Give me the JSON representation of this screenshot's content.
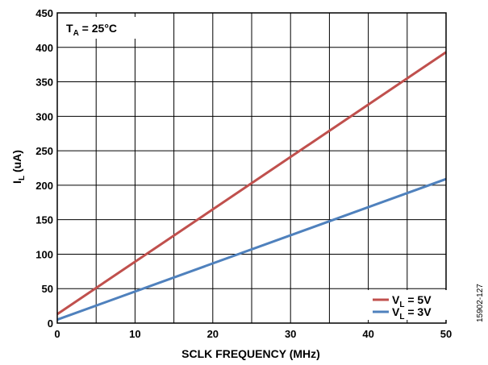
{
  "chart_data": {
    "type": "line",
    "xlabel": "SCLK FREQUENCY (MHz)",
    "ylabel": {
      "main": "I",
      "sub": "L",
      "rest": " (uA)"
    },
    "xlim": [
      0,
      50
    ],
    "ylim": [
      0,
      450
    ],
    "xticks": [
      "0",
      "10",
      "20",
      "30",
      "40",
      "50"
    ],
    "yticks": [
      "0",
      "50",
      "100",
      "150",
      "200",
      "250",
      "300",
      "350",
      "400",
      "450"
    ],
    "grid": true,
    "legend_position": "bottom-right",
    "annotation": {
      "main": "T",
      "sub": "A",
      "rest": " = 25°C"
    },
    "figure_id": "15902-127",
    "series": [
      {
        "name": {
          "main": "V",
          "sub": "L",
          "rest": " = 5V"
        },
        "color": "#c0504d",
        "x": [
          0,
          50
        ],
        "y": [
          13,
          393
        ]
      },
      {
        "name": {
          "main": "V",
          "sub": "L",
          "rest": " = 3V"
        },
        "color": "#4f81bd",
        "x": [
          0,
          50
        ],
        "y": [
          5,
          209
        ]
      }
    ]
  }
}
